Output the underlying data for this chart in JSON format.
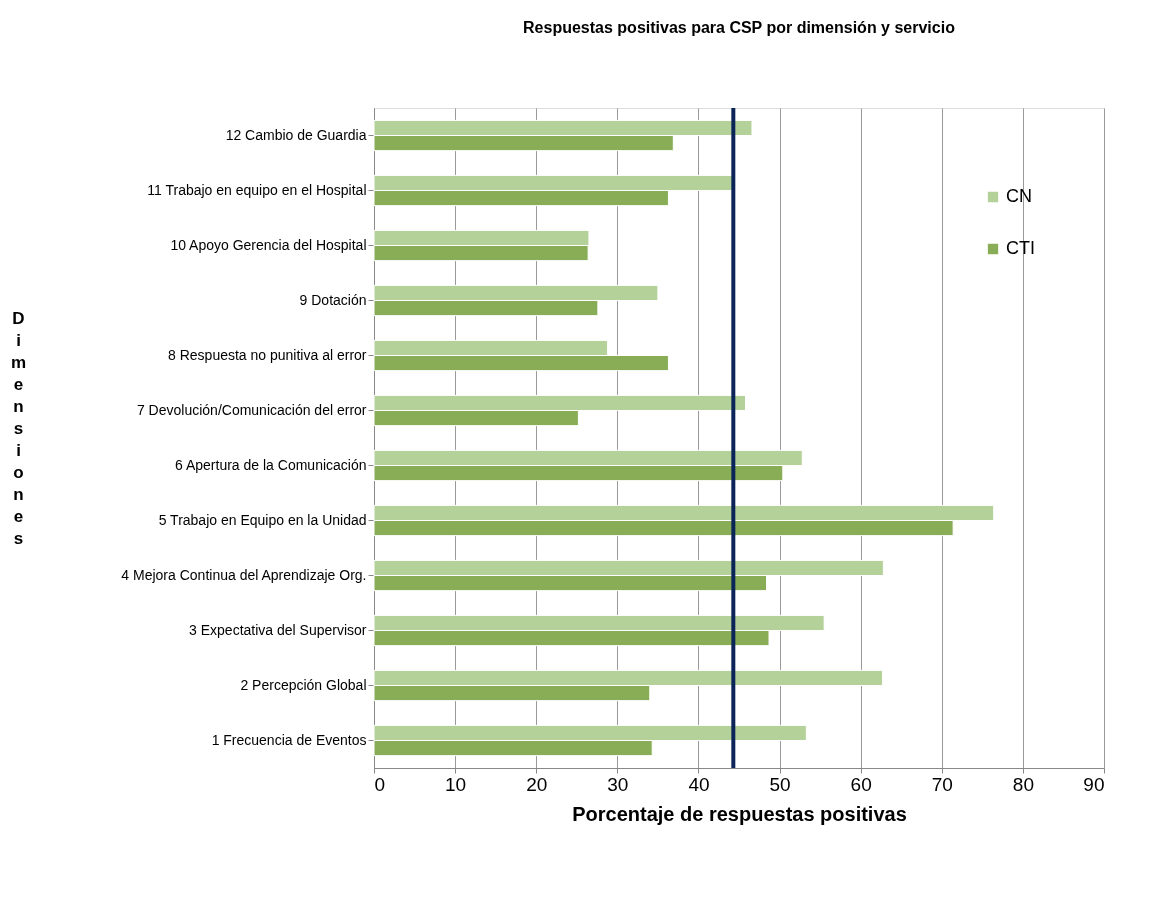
{
  "chart_data": {
    "type": "bar",
    "orientation": "horizontal",
    "title": "Respuestas positivas para CSP por dimensión y servicio",
    "xlabel": "Porcentaje de respuestas positivas",
    "ylabel": "Dimensiones",
    "categories": [
      "12 Cambio de Guardia",
      "11 Trabajo en equipo en el Hospital",
      "10 Apoyo Gerencia del Hospital",
      "9 Dotación",
      "8 Respuesta no punitiva al error",
      "7 Devolución/Comunicación del error",
      "6 Apertura de la Comunicación",
      "5 Trabajo en Equipo en la Unidad",
      "4 Mejora Continua del Aprendizaje Org.",
      "3 Expectativa del Supervisor",
      "2 Percepción Global",
      "1 Frecuencia de Eventos"
    ],
    "series": [
      {
        "name": "CN",
        "color": "#b5d19a",
        "values": [
          46.6,
          44.2,
          26.5,
          35.0,
          28.8,
          45.8,
          52.8,
          76.4,
          62.8,
          55.5,
          62.7,
          53.3
        ]
      },
      {
        "name": "CTI",
        "color": "#88ad56",
        "values": [
          36.9,
          36.3,
          26.4,
          27.6,
          36.3,
          25.2,
          50.4,
          71.4,
          48.4,
          48.7,
          34.0,
          34.3
        ]
      }
    ],
    "xlim": [
      0,
      90
    ],
    "xticks": [
      0,
      10,
      20,
      30,
      40,
      50,
      60,
      70,
      80,
      90
    ],
    "grid": "x",
    "legend": "top right",
    "ref_lines": [
      {
        "axis": "x",
        "value": 44.3,
        "color": "#0b2559"
      }
    ]
  }
}
